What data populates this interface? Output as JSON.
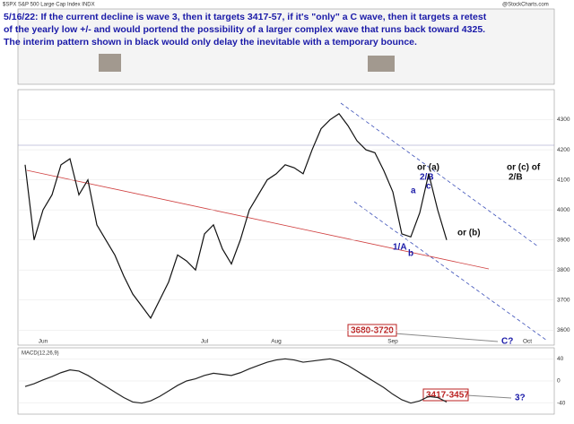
{
  "symbol": "$SPX S&P 500 Large Cap Index INDX",
  "source": "@StockCharts.com",
  "note": [
    "5/16/22:  If the current decline is wave 3, then it targets 3417-57, if it's \"only\" a C wave, then it targets a retest",
    "of the yearly low +/- and would portend the possibility of a larger complex wave that runs back toward 4325.",
    "The interim pattern shown in black would only delay the inevitable with a temporary bounce."
  ],
  "waves": [
    "or (a)",
    "2/B",
    "c",
    "a",
    "1/A",
    "b",
    "or (c) of",
    "2/B",
    "or (b)",
    "C?",
    "3?"
  ],
  "targets": [
    "3680-3720",
    "3417-3457"
  ],
  "chart_data": [
    {
      "type": "line",
      "color": "#111111",
      "categories": [
        null,
        null,
        "Jun",
        null,
        null,
        null,
        null,
        null,
        null,
        null,
        null,
        null,
        null,
        null,
        null,
        null,
        null,
        null,
        null,
        null,
        "Jul",
        null,
        null,
        null,
        null,
        null,
        null,
        null,
        "Aug",
        null,
        null,
        null,
        null,
        null,
        null,
        null,
        null,
        null,
        null,
        null,
        null,
        "Sep",
        null,
        null,
        null,
        null,
        null,
        null,
        null,
        null,
        null,
        null,
        null,
        null,
        null,
        null,
        "Oct",
        null
      ],
      "values": [
        4150,
        3900,
        4000,
        4050,
        4150,
        4170,
        4050,
        4100,
        3950,
        3900,
        3850,
        3780,
        3720,
        3680,
        3640,
        3700,
        3760,
        3850,
        3830,
        3800,
        3920,
        3950,
        3870,
        3820,
        3900,
        4000,
        4050,
        4100,
        4120,
        4150,
        4140,
        4120,
        4200,
        4270,
        4300,
        4320,
        4280,
        4230,
        4200,
        4190,
        4130,
        4060,
        3920,
        3910,
        3990,
        4120,
        4000,
        3900,
        null,
        null,
        null,
        null,
        null,
        null,
        null,
        null,
        null,
        null
      ],
      "ylim": [
        3550,
        4400
      ],
      "yticks": [
        3600,
        3700,
        3800,
        3900,
        4000,
        4100,
        4200,
        4300
      ]
    },
    {
      "type": "line",
      "title": "MACD(12,26,9)",
      "color": "#222222",
      "values": [
        -10,
        -5,
        2,
        8,
        15,
        20,
        18,
        10,
        0,
        -10,
        -20,
        -30,
        -38,
        -40,
        -36,
        -28,
        -18,
        -8,
        0,
        4,
        10,
        14,
        12,
        10,
        15,
        22,
        28,
        34,
        38,
        40,
        38,
        34,
        36,
        38,
        40,
        36,
        28,
        18,
        8,
        -2,
        -12,
        -24,
        -34,
        -40,
        -36,
        -28,
        -30,
        -38
      ],
      "ylim": [
        -60,
        60
      ],
      "yticks": [
        -40,
        0,
        40
      ]
    }
  ]
}
